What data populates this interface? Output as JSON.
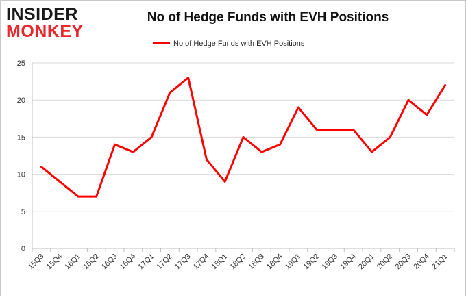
{
  "logo": {
    "line1": "INSIDER",
    "line2": "MONKEY"
  },
  "chart_data": {
    "type": "line",
    "title": "No of Hedge Funds with EVH Positions",
    "xlabel": "",
    "ylabel": "",
    "categories": [
      "15Q3",
      "15Q4",
      "16Q1",
      "16Q2",
      "16Q3",
      "16Q4",
      "17Q1",
      "17Q2",
      "17Q3",
      "17Q4",
      "18Q1",
      "18Q2",
      "18Q3",
      "18Q4",
      "19Q1",
      "19Q2",
      "19Q3",
      "19Q4",
      "20Q1",
      "20Q2",
      "20Q3",
      "20Q4",
      "21Q1"
    ],
    "series": [
      {
        "name": "No of Hedge Funds with EVH Positions",
        "color": "#ff0000",
        "values": [
          11,
          9,
          7,
          7,
          14,
          13,
          15,
          21,
          23,
          12,
          9,
          15,
          13,
          14,
          19,
          16,
          16,
          16,
          13,
          15,
          20,
          18,
          22
        ]
      }
    ],
    "ylim": [
      0,
      25
    ],
    "yticks": [
      0,
      5,
      10,
      15,
      20,
      25
    ],
    "grid": true,
    "legend": "top-center"
  }
}
